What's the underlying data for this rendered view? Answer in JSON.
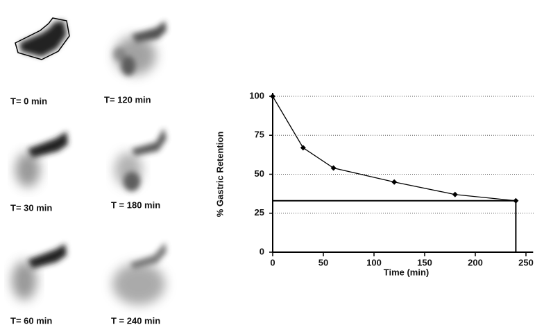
{
  "image_labels": [
    "T= 0 min",
    "T= 120 min",
    "T= 30 min",
    "T = 180 min",
    "T= 60 min",
    "T = 240 min"
  ],
  "chart_data": {
    "type": "line",
    "x_label": "Time (min)",
    "y_label": "% Gastric Retention",
    "x": [
      0,
      30,
      60,
      120,
      180,
      240
    ],
    "values": [
      100,
      67,
      54,
      45,
      37,
      33
    ],
    "color": "#000000",
    "xlim": [
      0,
      250
    ],
    "xticks": [
      0,
      50,
      100,
      150,
      200,
      250
    ],
    "ylim": [
      0,
      100
    ],
    "yticks": [
      0,
      25,
      50,
      75,
      100
    ],
    "grid": true
  }
}
